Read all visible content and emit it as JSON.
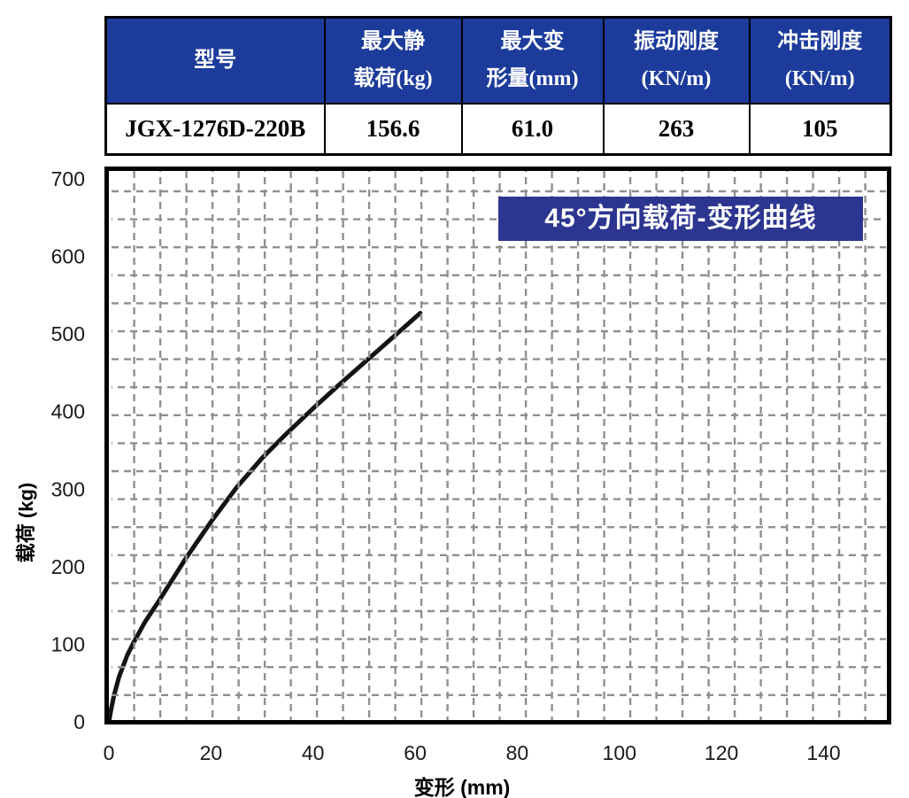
{
  "table": {
    "headers": [
      "型号",
      "最大静\n载荷(kg)",
      "最大变\n形量(mm)",
      "振动刚度\n(KN/m)",
      "冲击刚度\n(KN/m)"
    ],
    "row": [
      "JGX-1276D-220B",
      "156.6",
      "61.0",
      "263",
      "105"
    ]
  },
  "chart_data": {
    "type": "line",
    "title": "45°方向载荷-变形曲线",
    "xlabel": "变形 (mm)",
    "ylabel": "载荷 (kg)",
    "xlim": [
      0,
      153
    ],
    "ylim": [
      0,
      700
    ],
    "x_ticks": [
      0,
      20,
      40,
      60,
      80,
      100,
      120,
      140
    ],
    "y_ticks": [
      0,
      100,
      200,
      300,
      400,
      500,
      600,
      700
    ],
    "grid": "dashed-gray-square",
    "legend": "none",
    "series": [
      {
        "name": "45deg-load-deflection-curve",
        "x": [
          0,
          0.5,
          1,
          2,
          3.6,
          5,
          7,
          10,
          15,
          20,
          25,
          30,
          35,
          40,
          45,
          50,
          55,
          61
        ],
        "y": [
          0,
          18,
          34,
          58,
          86,
          104,
          128,
          158,
          210,
          258,
          302,
          340,
          373,
          404,
          434,
          463,
          492,
          527
        ]
      }
    ]
  },
  "colors": {
    "header_bg": "#1c3b9b",
    "header_text": "#ffffff",
    "title_bg": "#2c3590",
    "title_text": "#ffffff",
    "grid": "#8f8f8f",
    "curve": "#141414",
    "frame": "#000000"
  }
}
